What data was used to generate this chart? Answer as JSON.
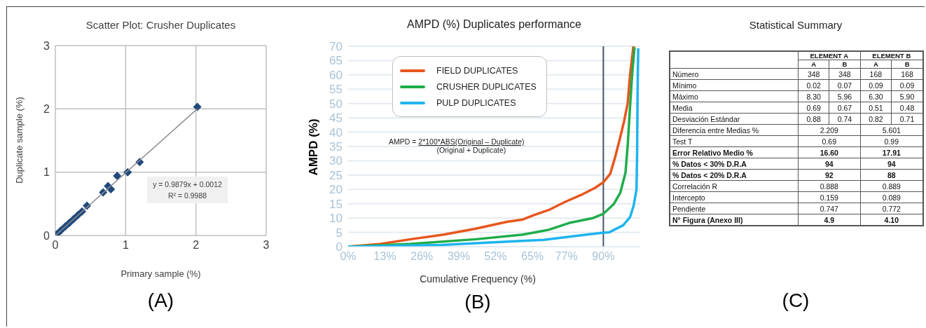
{
  "chart_data": [
    {
      "type": "scatter",
      "title": "Scatter Plot: Crusher Duplicates",
      "xlabel": "Primary sample (%)",
      "ylabel": "Duplicate sample (%)",
      "xlim": [
        0,
        3
      ],
      "ylim": [
        0,
        3
      ],
      "xticks": [
        0,
        1,
        2,
        3
      ],
      "yticks": [
        0,
        1,
        2,
        3
      ],
      "grid": true,
      "marker": "diamond",
      "series": [
        {
          "color": "#1f497d",
          "x": [
            0.02,
            0.08,
            0.14,
            0.2,
            0.26,
            0.32,
            0.38,
            0.45,
            0.68,
            0.75,
            0.79,
            0.88,
            1.03,
            1.2,
            2.02
          ],
          "values": [
            0.02,
            0.08,
            0.14,
            0.2,
            0.26,
            0.32,
            0.38,
            0.47,
            0.68,
            0.78,
            0.73,
            0.94,
            1.0,
            1.16,
            2.03
          ]
        },
        {
          "type": "line",
          "color": "#8c8c8c",
          "marker": "none",
          "x": [
            0,
            2.02
          ],
          "values": [
            0,
            2.0
          ]
        }
      ],
      "annotations": [
        "y = 0.9879x + 0.0012",
        "R² = 0.9988",
        "(A)"
      ]
    },
    {
      "type": "line",
      "title": "AMPD (%) Duplicates performance",
      "xlabel": "Cumulative Frequency (%)",
      "ylabel": "AMPD (%)",
      "xlim": [
        0,
        103
      ],
      "ylim": [
        0,
        70
      ],
      "xticks": [
        {
          "value": 0,
          "label": "0%"
        },
        {
          "value": 13,
          "label": "13%"
        },
        {
          "value": 26,
          "label": "26%"
        },
        {
          "value": 39,
          "label": "39%"
        },
        {
          "value": 52,
          "label": "52%"
        },
        {
          "value": 65,
          "label": "65%"
        },
        {
          "value": 77,
          "label": "77%"
        },
        {
          "value": 90,
          "label": "90%"
        }
      ],
      "yticks": [
        0,
        5,
        10,
        15,
        20,
        25,
        30,
        35,
        40,
        45,
        50,
        55,
        60,
        65,
        70
      ],
      "grid": "y",
      "legend": "top left",
      "marker": "none",
      "line_style": "solid",
      "series": [
        {
          "name": "FIELD DUPLICATES",
          "color": "#e8561e",
          "x": [
            0,
            11.5,
            22,
            33.7,
            45,
            56,
            61.6,
            65.7,
            70.7,
            76.4,
            82,
            87,
            90,
            92.4,
            94,
            95.7,
            97.3,
            98.6,
            99.4,
            100.6
          ],
          "values": [
            0,
            1,
            2.6,
            4.2,
            6.3,
            8.7,
            9.5,
            11.1,
            12.8,
            15.6,
            18,
            20.5,
            22.5,
            25.4,
            30.7,
            37.2,
            43.7,
            50.2,
            60,
            70
          ]
        },
        {
          "name": "CRUSHER DUPLICATES",
          "color": "#1fad4b",
          "x": [
            0,
            22,
            45,
            61.6,
            70.7,
            78,
            86,
            90,
            93.6,
            96,
            97.8,
            98.6,
            99.4,
            100.2,
            101
          ],
          "values": [
            0,
            1,
            2.6,
            4.2,
            5.9,
            8.3,
            9.9,
            11.5,
            14.8,
            18.9,
            25.8,
            35.6,
            48.6,
            60.8,
            69.7
          ]
        },
        {
          "name": "PULP DUPLICATES",
          "color": "#1eb4ee",
          "x": [
            0,
            32.9,
            69,
            82,
            90,
            92,
            97,
            99.4,
            100.7,
            101.7,
            101.9,
            102.1,
            102.3
          ],
          "values": [
            0,
            0.6,
            2.4,
            4,
            4.9,
            5,
            7.5,
            10.3,
            14.4,
            20.1,
            32.3,
            56.7,
            69.3
          ]
        }
      ],
      "ref_lines": [
        {
          "axis": "x",
          "value": 90,
          "color": "#44546a"
        }
      ],
      "annotations": [
        "AMPD =",
        "2*100*ABS(Original – Duplicate)",
        "(Original + Duplicate)",
        "(B)"
      ]
    },
    {
      "type": "other",
      "title": "Statistical Summary",
      "annotations": [
        "ELEMENT A",
        "ELEMENT B",
        "A",
        "B",
        "A",
        "B",
        "Número",
        "348",
        "348",
        "168",
        "168",
        "Mínimo",
        "0.02",
        "0.07",
        "0.09",
        "0.09",
        "Máximo",
        "8.30",
        "5.96",
        "6.30",
        "5.90",
        "Media",
        "0.69",
        "0.67",
        "0.51",
        "0.48",
        "Desviación Estándar",
        "0.88",
        "0.74",
        "0.82",
        "0.71",
        "Diferencia entre Medias %",
        "2.209",
        "5.601",
        "Test T",
        "0.69",
        "0.99",
        "Error Relativo Medio %",
        "16.60",
        "17.91",
        "% Datos < 30% D.R.A",
        "94",
        "94",
        "% Datos < 20% D.R.A",
        "92",
        "88",
        "Correlación R",
        "0.888",
        "0.889",
        "Intercepto",
        "0.159",
        "0.089",
        "Pendiente",
        "0.747",
        "0.772",
        "N° Figura (Anexo III)",
        "4.9",
        "4.10",
        "(C)"
      ]
    }
  ]
}
